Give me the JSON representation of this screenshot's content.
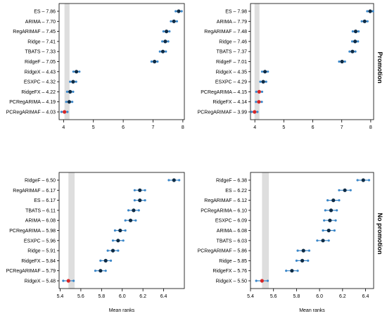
{
  "figure": {
    "row_labels": [
      "Promotion",
      "No promotion"
    ],
    "xlabel": "Mean ranks"
  },
  "chart_data": [
    {
      "type": "scatter",
      "panel": "top-left",
      "xlim": [
        3.85,
        8.05
      ],
      "xticks": [
        4,
        5,
        6,
        7,
        8
      ],
      "reference_band": [
        4.03,
        4.2
      ],
      "labels": [
        "ES – 7.86",
        "ARIMA – 7.70",
        "RegARIMAF – 7.45",
        "Ridge – 7.41",
        "TBATS – 7.33",
        "RidgeF – 7.05",
        "RidgeX – 4.43",
        "ESXPC – 4.32",
        "RidgeFX – 4.22",
        "PCRegARIMA – 4.19",
        "PCRegARIMAF – 4.03"
      ],
      "values": [
        7.86,
        7.7,
        7.45,
        7.41,
        7.33,
        7.05,
        4.43,
        4.32,
        4.22,
        4.19,
        4.03
      ],
      "best_index": 10,
      "ci_half_width": 0.1,
      "xlabel": ""
    },
    {
      "type": "scatter",
      "panel": "top-right",
      "xlim": [
        3.85,
        8.1
      ],
      "xticks": [
        4,
        5,
        6,
        7,
        8
      ],
      "reference_band": [
        3.99,
        4.16
      ],
      "labels": [
        "ES – 7.98",
        "ARIMA – 7.79",
        "RegARIMAF – 7.48",
        "Ridge – 7.46",
        "TBATS – 7.37",
        "RidgeF – 7.01",
        "RidgeX – 4.35",
        "ESXPC – 4.29",
        "PCRegARIMA – 4.15",
        "RidgeFX – 4.14",
        "PCRegARIMAF – 3.99"
      ],
      "values": [
        7.98,
        7.79,
        7.48,
        7.46,
        7.37,
        7.01,
        4.35,
        4.29,
        4.15,
        4.14,
        3.99
      ],
      "best_index": 10,
      "red_indices": [
        8,
        9,
        10
      ],
      "ci_half_width": 0.1,
      "xlabel": ""
    },
    {
      "type": "scatter",
      "panel": "bottom-left",
      "xlim": [
        5.39,
        6.6
      ],
      "xticks": [
        5.4,
        5.6,
        5.8,
        6.0,
        6.2,
        6.4
      ],
      "reference_band": [
        5.48,
        5.54
      ],
      "labels": [
        "RidgeF – 6.50",
        "RegARIMAF – 6.17",
        "ES – 6.17",
        "TBATS – 6.11",
        "ARIMA – 6.08",
        "PCRegARIMA – 5.98",
        "ESXPC – 5.96",
        "Ridge – 5.91",
        "RidgeFX – 5.84",
        "PCRegARIMAF – 5.79",
        "RidgeX – 5.48"
      ],
      "values": [
        6.5,
        6.17,
        6.17,
        6.11,
        6.08,
        5.98,
        5.96,
        5.91,
        5.84,
        5.79,
        5.48
      ],
      "best_index": 10,
      "ci_half_width": 0.05,
      "xlabel": "Mean ranks"
    },
    {
      "type": "scatter",
      "panel": "bottom-right",
      "xlim": [
        5.4,
        6.47
      ],
      "xticks": [
        5.4,
        5.6,
        5.8,
        6.0,
        6.2,
        6.4
      ],
      "reference_band": [
        5.5,
        5.56
      ],
      "labels": [
        "RidgeF – 6.38",
        "ES – 6.22",
        "RegARIMAF – 6.12",
        "PCRegARIMA – 6.10",
        "ESXPC – 6.09",
        "ARIMA – 6.08",
        "TBATS – 6.03",
        "PCRegARIMAF – 5.86",
        "Ridge – 5.85",
        "RidgeFX – 5.76",
        "RidgeX – 5.50"
      ],
      "values": [
        6.38,
        6.22,
        6.12,
        6.1,
        6.09,
        6.08,
        6.03,
        5.86,
        5.85,
        5.76,
        5.5
      ],
      "best_index": 10,
      "ci_half_width": 0.05,
      "xlabel": "Mean ranks"
    }
  ],
  "colors": {
    "point": "#0d2b45",
    "ci": "#3a86c8",
    "best": "#d62728",
    "band": "#dedede",
    "axis": "#000000"
  }
}
